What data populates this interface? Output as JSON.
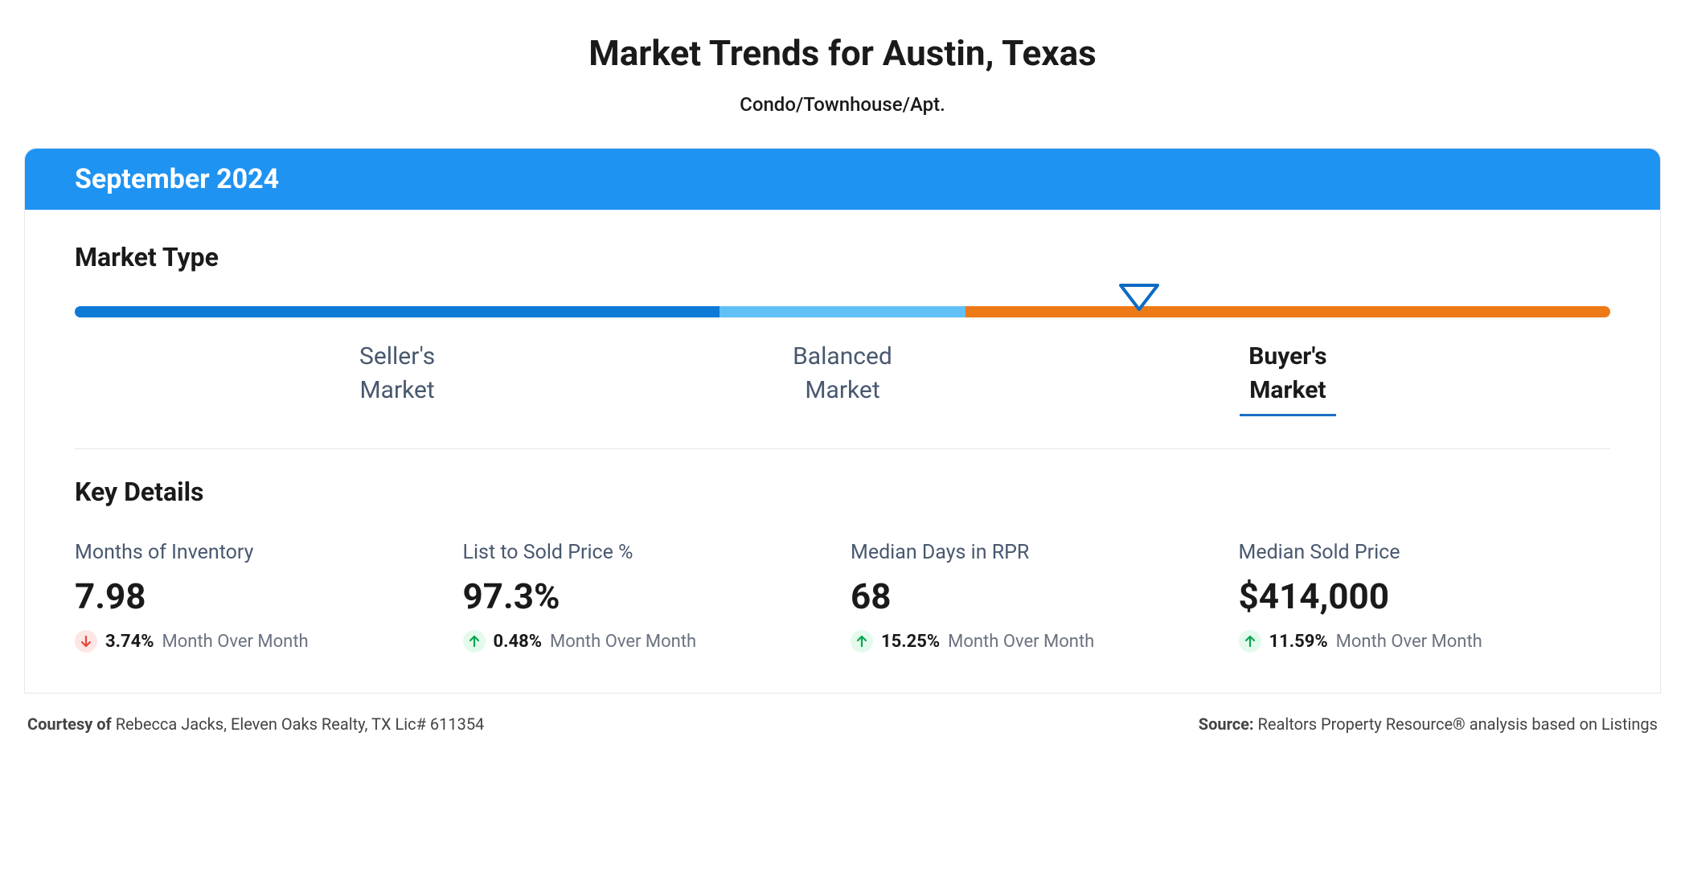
{
  "title": "Market Trends for Austin, Texas",
  "subtitle": "Condo/Townhouse/Apt.",
  "period_label": "September 2024",
  "colors": {
    "header_bg": "#1e93f2",
    "pointer_stroke": "#0d6bc4",
    "text_muted": "#48586f",
    "underline": "#1e6fc4",
    "divider": "#e5e7eb",
    "up_bg": "#e3faed",
    "up_fg": "#0aa64f",
    "down_bg": "#fde6e4",
    "down_fg": "#e4483a"
  },
  "market_type": {
    "section_title": "Market Type",
    "segments": [
      {
        "label_line1": "Seller's",
        "label_line2": "Market",
        "color": "#0d7ad6",
        "width_pct": 42
      },
      {
        "label_line1": "Balanced",
        "label_line2": "Market",
        "color": "#61c0f6",
        "width_pct": 16
      },
      {
        "label_line1": "Buyer's",
        "label_line2": "Market",
        "color": "#ee7a17",
        "width_pct": 42
      }
    ],
    "pointer_position_pct": 68,
    "active_index": 2
  },
  "key_details": {
    "section_title": "Key Details",
    "period_text": "Month Over Month",
    "metrics": [
      {
        "label": "Months of Inventory",
        "value": "7.98",
        "change_pct": "3.74%",
        "direction": "down"
      },
      {
        "label": "List to Sold Price %",
        "value": "97.3%",
        "change_pct": "0.48%",
        "direction": "up"
      },
      {
        "label": "Median Days in RPR",
        "value": "68",
        "change_pct": "15.25%",
        "direction": "up"
      },
      {
        "label": "Median Sold Price",
        "value": "$414,000",
        "change_pct": "11.59%",
        "direction": "up"
      }
    ]
  },
  "footer": {
    "courtesy_label": "Courtesy of",
    "courtesy_value": "Rebecca Jacks, Eleven Oaks Realty, TX Lic# 611354",
    "source_label": "Source:",
    "source_value": "Realtors Property Resource® analysis based on Listings"
  }
}
